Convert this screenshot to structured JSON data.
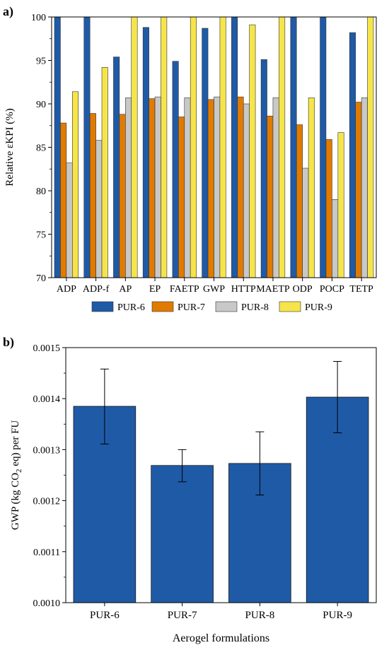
{
  "colors": {
    "PUR-6": "#1f5aa6",
    "PUR-7": "#e07b00",
    "PUR-8": "#c8c8c8",
    "PUR-9": "#f5e54a",
    "bar_b": "#1f5aa6"
  },
  "chart_data": [
    {
      "panel_label": "a)",
      "type": "bar",
      "ylabel": "Relative εKPI (%)",
      "ylim": [
        70,
        100
      ],
      "yticks": [
        "70",
        "75",
        "80",
        "85",
        "90",
        "95",
        "100"
      ],
      "grid": false,
      "legend_position": "bottom",
      "categories": [
        "ADP",
        "ADP-f",
        "AP",
        "EP",
        "FAETP",
        "GWP",
        "HTTP",
        "MAETP",
        "ODP",
        "POCP",
        "TETP"
      ],
      "series": [
        {
          "name": "PUR-6",
          "values": [
            100,
            100,
            95.4,
            98.8,
            94.9,
            98.7,
            100,
            95.1,
            100,
            100,
            98.2
          ]
        },
        {
          "name": "PUR-7",
          "values": [
            87.8,
            88.9,
            88.8,
            90.6,
            88.5,
            90.5,
            90.8,
            88.6,
            87.6,
            85.9,
            90.2
          ]
        },
        {
          "name": "PUR-8",
          "values": [
            83.2,
            85.8,
            90.7,
            90.8,
            90.7,
            90.8,
            90.0,
            90.7,
            82.6,
            79.0,
            90.7
          ]
        },
        {
          "name": "PUR-9",
          "values": [
            91.4,
            94.2,
            100,
            100,
            100,
            100,
            99.1,
            100,
            90.7,
            86.7,
            100
          ]
        }
      ]
    },
    {
      "panel_label": "b)",
      "type": "bar",
      "xlabel": "Aerogel formulations",
      "ylabel_parts": [
        "GWP (kg CO",
        "2",
        " eq) per FU"
      ],
      "ylim": [
        0.001,
        0.0015
      ],
      "yticks": [
        "0.0010",
        "0.0011",
        "0.0012",
        "0.0013",
        "0.0014",
        "0.0015"
      ],
      "grid": false,
      "categories": [
        "PUR-6",
        "PUR-7",
        "PUR-8",
        "PUR-9"
      ],
      "values": [
        0.001385,
        0.001269,
        0.001273,
        0.001403
      ],
      "error_low": [
        0.001311,
        0.001237,
        0.001211,
        0.001333
      ],
      "error_high": [
        0.001458,
        0.0013,
        0.001335,
        0.001473
      ]
    }
  ]
}
